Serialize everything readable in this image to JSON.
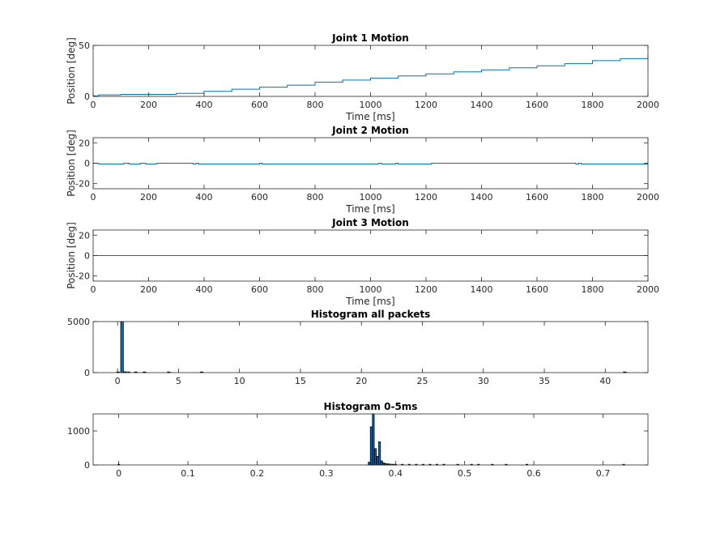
{
  "colors": {
    "line": "#0072bd",
    "bar_fill": "#0072bd",
    "bar_edge": "#000000",
    "axis": "#262626"
  },
  "chart_data": [
    {
      "type": "line",
      "title": "Joint 1 Motion",
      "xlabel": "Time [ms]",
      "ylabel": "Position [deg]",
      "xlim": [
        0,
        2000
      ],
      "ylim": [
        0,
        50
      ],
      "xticks": [
        0,
        200,
        400,
        600,
        800,
        1000,
        1200,
        1400,
        1600,
        1800,
        2000
      ],
      "yticks": [
        0,
        50
      ],
      "grid": false,
      "series": [
        {
          "x": [
            0,
            20,
            100,
            200,
            300,
            400,
            500,
            600,
            700,
            800,
            900,
            1000,
            1100,
            1200,
            1300,
            1400,
            1500,
            1600,
            1700,
            1800,
            1900,
            2000
          ],
          "y": [
            0.5,
            1.5,
            2,
            2,
            3,
            5,
            7,
            9,
            11,
            14,
            16,
            18,
            20,
            22,
            24,
            26,
            28,
            30,
            32,
            35,
            37,
            40
          ]
        }
      ]
    },
    {
      "type": "line",
      "title": "Joint 2 Motion",
      "xlabel": "Time [ms]",
      "ylabel": "Position [deg]",
      "xlim": [
        0,
        2000
      ],
      "ylim": [
        -25,
        25
      ],
      "xticks": [
        0,
        200,
        400,
        600,
        800,
        1000,
        1200,
        1400,
        1600,
        1800,
        2000
      ],
      "yticks": [
        -20,
        0,
        20
      ],
      "grid": false,
      "series": [
        {
          "x": [
            0,
            20,
            100,
            110,
            130,
            160,
            170,
            190,
            220,
            230,
            360,
            370,
            380,
            590,
            600,
            610,
            1020,
            1030,
            1040,
            1080,
            1090,
            1100,
            1210,
            1220,
            1740,
            1750,
            1760,
            2000
          ],
          "y": [
            0,
            -0.8,
            -0.8,
            0,
            -0.8,
            -0.8,
            0,
            -0.8,
            -0.8,
            0,
            -0.8,
            0,
            -0.8,
            -0.8,
            0,
            -0.8,
            -0.8,
            0,
            -0.8,
            -0.8,
            0,
            -0.8,
            -0.8,
            0,
            -0.8,
            0,
            -0.8,
            -0.8
          ]
        }
      ]
    },
    {
      "type": "line",
      "title": "Joint 3 Motion",
      "xlabel": "Time [ms]",
      "ylabel": "Position [deg]",
      "xlim": [
        0,
        2000
      ],
      "ylim": [
        -25,
        25
      ],
      "xticks": [
        0,
        200,
        400,
        600,
        800,
        1000,
        1200,
        1400,
        1600,
        1800,
        2000
      ],
      "yticks": [
        -20,
        0,
        20
      ],
      "grid": false,
      "series": [
        {
          "x": [
            0,
            2000
          ],
          "y": [
            0,
            0
          ]
        }
      ]
    },
    {
      "type": "bar",
      "title": "Histogram all packets",
      "xlabel": "",
      "ylabel": "",
      "xlim": [
        -2,
        43.5
      ],
      "ylim": [
        0,
        5000
      ],
      "xticks": [
        0,
        5,
        10,
        15,
        20,
        25,
        30,
        35,
        40
      ],
      "yticks": [
        0,
        5000
      ],
      "grid": false,
      "bins": [
        {
          "x": 0.04,
          "value": 25
        },
        {
          "x": 0.37,
          "value": 5000
        },
        {
          "x": 0.6,
          "value": 80
        },
        {
          "x": 0.9,
          "value": 40
        },
        {
          "x": 1.5,
          "value": 25
        },
        {
          "x": 2.2,
          "value": 20
        },
        {
          "x": 4.2,
          "value": 25
        },
        {
          "x": 6.9,
          "value": 15
        },
        {
          "x": 41.6,
          "value": 25
        }
      ]
    },
    {
      "type": "bar",
      "title": "Histogram 0-5ms",
      "xlabel": "",
      "ylabel": "",
      "xlim": [
        -0.037,
        0.765
      ],
      "ylim": [
        0,
        1500
      ],
      "xticks": [
        0,
        0.1,
        0.2,
        0.3,
        0.4,
        0.5,
        0.6,
        0.7
      ],
      "yticks": [
        0,
        1000
      ],
      "grid": false,
      "bins": [
        {
          "x": 0.0,
          "value": 10
        },
        {
          "x": 0.362,
          "value": 80
        },
        {
          "x": 0.365,
          "value": 1120
        },
        {
          "x": 0.368,
          "value": 1500
        },
        {
          "x": 0.371,
          "value": 480
        },
        {
          "x": 0.374,
          "value": 250
        },
        {
          "x": 0.377,
          "value": 680
        },
        {
          "x": 0.38,
          "value": 120
        },
        {
          "x": 0.383,
          "value": 60
        },
        {
          "x": 0.386,
          "value": 40
        },
        {
          "x": 0.389,
          "value": 30
        },
        {
          "x": 0.392,
          "value": 25
        },
        {
          "x": 0.396,
          "value": 20
        },
        {
          "x": 0.4,
          "value": 15
        },
        {
          "x": 0.41,
          "value": 12
        },
        {
          "x": 0.42,
          "value": 10
        },
        {
          "x": 0.43,
          "value": 10
        },
        {
          "x": 0.44,
          "value": 8
        },
        {
          "x": 0.45,
          "value": 8
        },
        {
          "x": 0.46,
          "value": 6
        },
        {
          "x": 0.47,
          "value": 5
        },
        {
          "x": 0.49,
          "value": 5
        },
        {
          "x": 0.51,
          "value": 6
        },
        {
          "x": 0.52,
          "value": 4
        },
        {
          "x": 0.54,
          "value": 5
        },
        {
          "x": 0.56,
          "value": 5
        },
        {
          "x": 0.59,
          "value": 5
        },
        {
          "x": 0.73,
          "value": 5
        }
      ]
    }
  ]
}
